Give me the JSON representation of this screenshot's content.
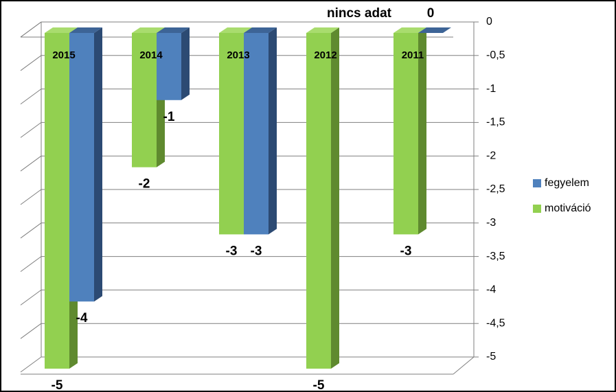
{
  "chart_data": {
    "type": "bar3d",
    "categories": [
      "2015",
      "2014",
      "2013",
      "2012",
      "2011"
    ],
    "series": [
      {
        "name": "motiváció",
        "color": "#92d050",
        "values": [
          -5,
          -2,
          -3,
          -5,
          -3
        ]
      },
      {
        "name": "fegyelem",
        "color": "#4f81bd",
        "values": [
          -4,
          -1,
          -3,
          null,
          0
        ],
        "value_labels": [
          "-4",
          "-1",
          "-3",
          "nincs adat",
          "0"
        ]
      }
    ],
    "ylim": [
      -5,
      0
    ],
    "yticks": [
      0,
      {
        "value": -0.5,
        "label": "-0,5"
      },
      -1,
      {
        "value": -1.5,
        "label": "-1,5"
      },
      -2,
      {
        "value": -2.5,
        "label": "-2,5"
      },
      -3,
      {
        "value": -3.5,
        "label": "-3,5"
      },
      -4,
      {
        "value": -4.5,
        "label": "-4,5"
      },
      -5
    ],
    "grid": true,
    "legend": "right"
  }
}
